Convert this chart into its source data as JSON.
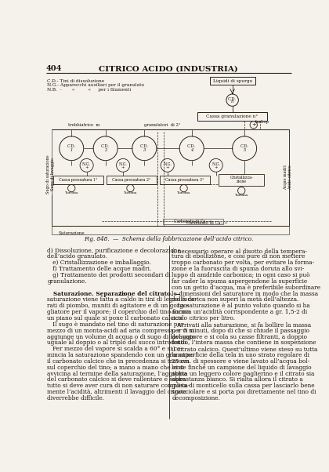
{
  "page_number": "404",
  "header_title": "CITRICO ACIDO (INDUSTRIA)",
  "figure_caption": "Fig. 848.  —  Schema della fabbricazione dell’acido citrico.",
  "bg_color": "#f5f2ec",
  "text_color": "#1a1208",
  "diagram_color": "#2a2010",
  "body_text_left": [
    "d) Dissoluzione, purificazione e decolorazione",
    "dell’acido granulato.",
    "   e) Cristallizzazione e imballaggio.",
    "   f) Trattamento delle acque madri.",
    "   g) Trattamento dei prodotti secondari di",
    "granulazione.",
    "",
    "   Saturazione. Separazione del citrato. — La",
    "saturazione viene fatta a caldo in tini di legno fode-",
    "rati di piombo, muniti di agitatore e di un gorgo-",
    "gliatore per il vapore; il coperchio del tino forma",
    "un piano sul quale si pone il carbonato calcico.",
    "   Il sugo è mandato nel tino di saturazione per",
    "mezzo di un monta-acidi ad aria compressa, e vi si",
    "aggiunge un volume di acqua o di sugo di lavaggio",
    "uguale al doppio o al triplo del succo introdotto.",
    "   Per mezzo del vapore si scalda a 60° e si co-",
    "mincia la saturazione spandendo con un granatino",
    "il carbonato calcico che in precedenza si trovava",
    "sul coperchio del tino; a mano a mano che ci si",
    "avvicina al termine della saturazione, l’aggiunta",
    "del carbonato calcico si deve rallentare e sopra",
    "tutto si deve aver cura di non saturare completa-",
    "mente l’acidità, altrimenti il lavaggio del citrate",
    "diverrebbe difficile."
  ],
  "body_text_right": [
    "È necessario operare al disotto della tempera-",
    "tura di ebollizione, e così pure di non mettere",
    "troppo carbonato per volta, per evitare la forma-",
    "zione e la fuoruscita di spuma doruta allo svi-",
    "luppo di anidride carbonica; in ogni caso si può",
    "far cader la spuma aspergendone la superficie",
    "con un getto d’acqua, ma è preferibile subordinare",
    "le dimensioni del saturatore in modo che la massa",
    "della carica non superi la metà dell’altezza.",
    "   La saturazione è al punto voluto quando si ha",
    "ancora un’acidità corrispondente a gr. 1,5-2 di",
    "acido citrico per litro.",
    "   Arrivati alla saturazione, si fa bollire la massa",
    "per 5 minuti, dopo di che si chiude il passaggio",
    "del vapore e si cola su casse filtranti, a doppio",
    "fondo, l’intera massa che contiene in sospensione",
    "il citrato calcico. Quest’ultimo viene steso su tutta",
    "la superficie della tela in uno strato regolare di",
    "25 cm. di spessore e viene lavato all’acqua bol-",
    "lente finché un campione del liquido di lavaggio",
    "abbia un leggero colore paglierino e il citrato sia",
    "abbastanza bianco. Si rialta allora il citrato a",
    "guisa di monticello sulla cassa per lasciarlo bene",
    "sgocciolare e si porta poi direttamente nel tino di",
    "decomposizione."
  ]
}
